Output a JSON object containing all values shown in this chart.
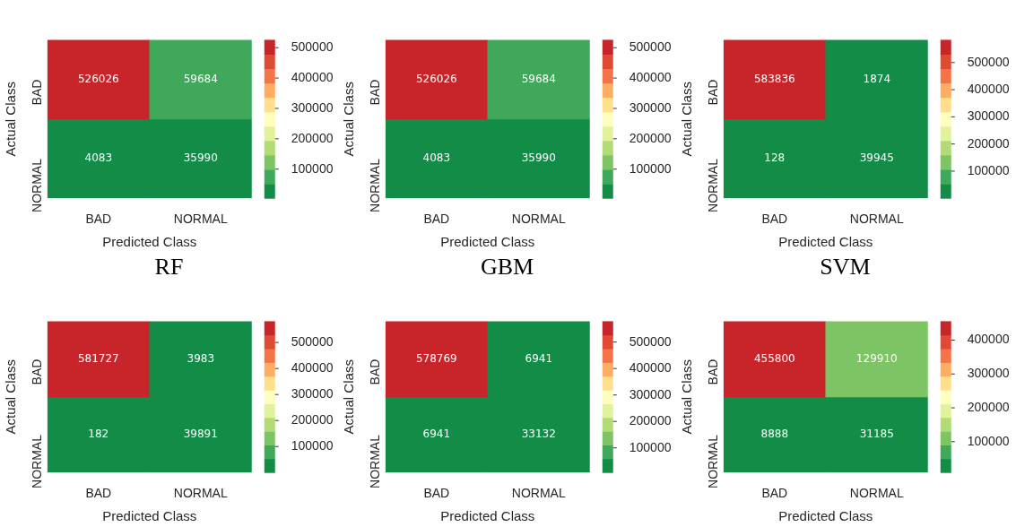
{
  "chart_data": [
    {
      "type": "heatmap",
      "xlabel": "Predicted Class",
      "ylabel": "Actual Class",
      "categories": [
        "BAD",
        "NORMAL"
      ],
      "y_categories": [
        "BAD",
        "NORMAL"
      ],
      "cells": [
        [
          526026,
          59684
        ],
        [
          4083,
          35990
        ]
      ],
      "clim": [
        4083,
        526026
      ],
      "cticks": [
        100000,
        200000,
        300000,
        400000,
        500000
      ],
      "data_labels": true,
      "annotations": [
        "RF"
      ]
    },
    {
      "type": "heatmap",
      "xlabel": "Predicted Class",
      "ylabel": "Actual Class",
      "categories": [
        "BAD",
        "NORMAL"
      ],
      "y_categories": [
        "BAD",
        "NORMAL"
      ],
      "cells": [
        [
          526026,
          59684
        ],
        [
          4083,
          35990
        ]
      ],
      "clim": [
        4083,
        526026
      ],
      "cticks": [
        100000,
        200000,
        300000,
        400000,
        500000
      ],
      "data_labels": true,
      "annotations": [
        "GBM"
      ]
    },
    {
      "type": "heatmap",
      "xlabel": "Predicted Class",
      "ylabel": "Actual Class",
      "categories": [
        "BAD",
        "NORMAL"
      ],
      "y_categories": [
        "BAD",
        "NORMAL"
      ],
      "cells": [
        [
          583836,
          1874
        ],
        [
          128,
          39945
        ]
      ],
      "clim": [
        128,
        583836
      ],
      "cticks": [
        100000,
        200000,
        300000,
        400000,
        500000
      ],
      "data_labels": true,
      "annotations": [
        "SVM"
      ]
    },
    {
      "type": "heatmap",
      "xlabel": "Predicted Class",
      "ylabel": "Actual Class",
      "categories": [
        "BAD",
        "NORMAL"
      ],
      "y_categories": [
        "BAD",
        "NORMAL"
      ],
      "cells": [
        [
          581727,
          3983
        ],
        [
          182,
          39891
        ]
      ],
      "clim": [
        182,
        581727
      ],
      "cticks": [
        100000,
        200000,
        300000,
        400000,
        500000
      ],
      "data_labels": true
    },
    {
      "type": "heatmap",
      "xlabel": "Predicted Class",
      "ylabel": "Actual Class",
      "categories": [
        "BAD",
        "NORMAL"
      ],
      "y_categories": [
        "BAD",
        "NORMAL"
      ],
      "cells": [
        [
          578769,
          6941
        ],
        [
          6941,
          33132
        ]
      ],
      "clim": [
        6941,
        578769
      ],
      "cticks": [
        100000,
        200000,
        300000,
        400000,
        500000
      ],
      "data_labels": true
    },
    {
      "type": "heatmap",
      "xlabel": "Predicted Class",
      "ylabel": "Actual Class",
      "categories": [
        "BAD",
        "NORMAL"
      ],
      "y_categories": [
        "BAD",
        "NORMAL"
      ],
      "cells": [
        [
          455800,
          129910
        ],
        [
          8888,
          31185
        ]
      ],
      "clim": [
        8888,
        455800
      ],
      "cticks": [
        100000,
        200000,
        300000,
        400000
      ],
      "data_labels": true
    }
  ]
}
